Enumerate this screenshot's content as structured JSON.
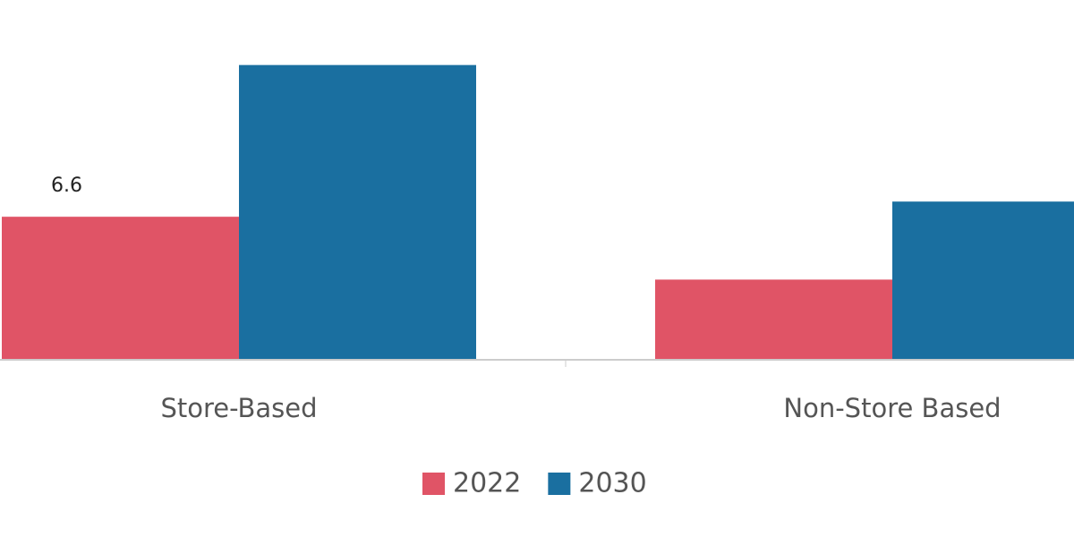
{
  "chart_data": {
    "type": "bar",
    "categories": [
      "Store-Based",
      "Non-Store Based"
    ],
    "series": [
      {
        "name": "2022",
        "color": "#e05466",
        "values": [
          6.6,
          3.7
        ],
        "value_labels": [
          "6.6",
          null
        ]
      },
      {
        "name": "2030",
        "color": "#1a6fa0",
        "values": [
          13.6,
          7.3
        ]
      }
    ],
    "ylim": [
      0,
      16.6
    ]
  }
}
